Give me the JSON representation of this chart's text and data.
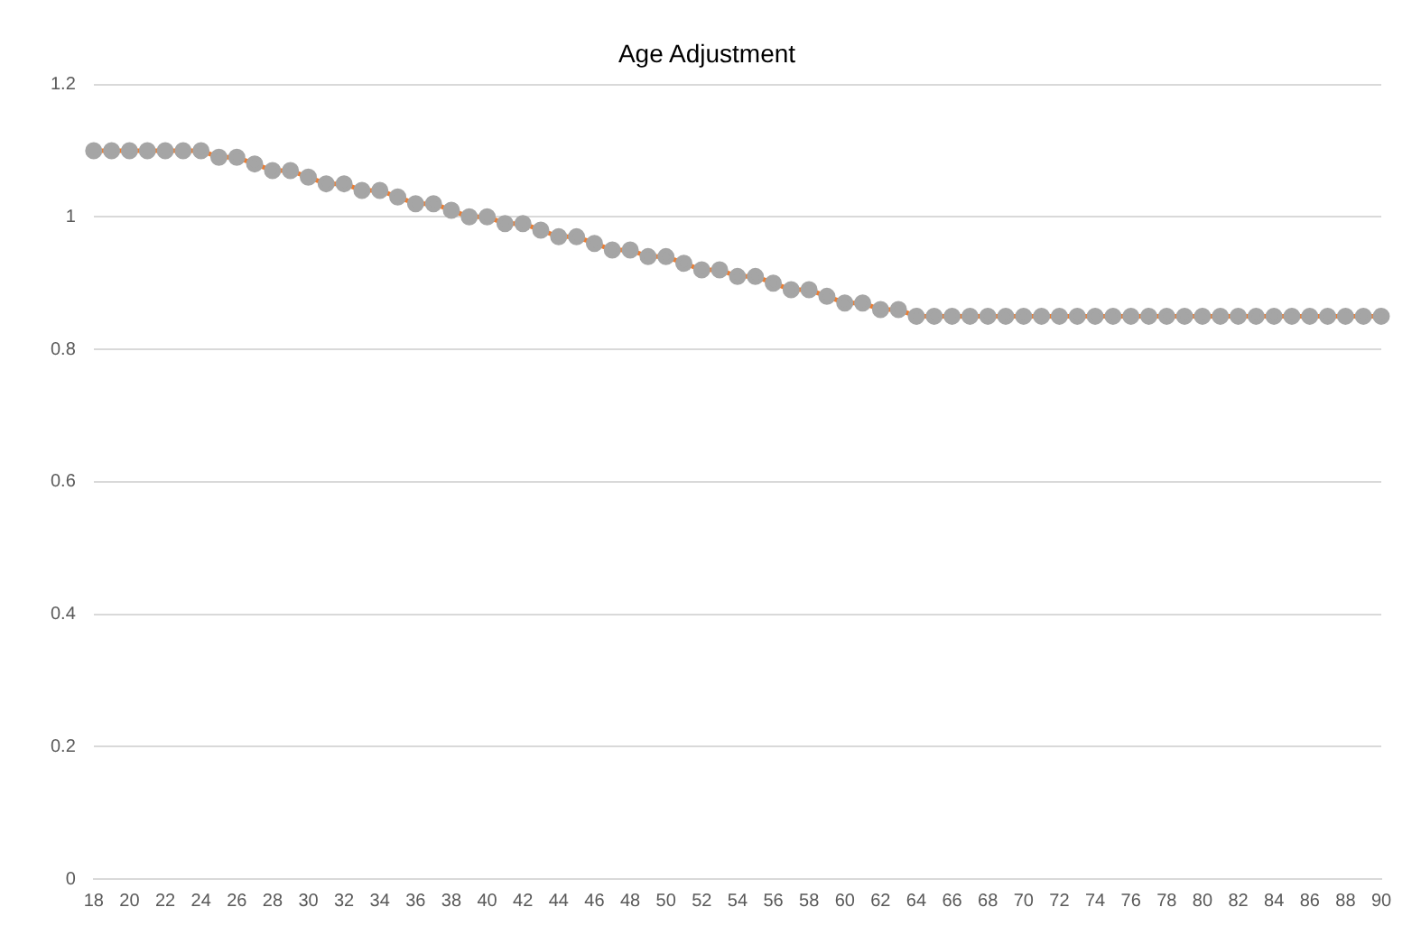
{
  "chart_data": {
    "type": "line",
    "title": "Age Adjustment",
    "categories": [
      "18",
      null,
      "20",
      null,
      "22",
      null,
      "24",
      null,
      "26",
      null,
      "28",
      null,
      "30",
      null,
      "32",
      null,
      "34",
      null,
      "36",
      null,
      "38",
      null,
      "40",
      null,
      "42",
      null,
      "44",
      null,
      "46",
      null,
      "48",
      null,
      "50",
      null,
      "52",
      null,
      "54",
      null,
      "56",
      null,
      "58",
      null,
      "60",
      null,
      "62",
      null,
      "64",
      null,
      "66",
      null,
      "68",
      null,
      "70",
      null,
      "72",
      null,
      "74",
      null,
      "76",
      null,
      "78",
      null,
      "80",
      null,
      "82",
      null,
      "84",
      null,
      "86",
      null,
      "88",
      null,
      "90"
    ],
    "series": [
      {
        "color": "#ed7d31",
        "values": [
          1.1,
          1.1,
          1.1,
          1.1,
          1.1,
          1.1,
          1.1,
          1.09,
          1.09,
          1.08,
          1.07,
          1.07,
          1.06,
          1.05,
          1.05,
          1.04,
          1.04,
          1.03,
          1.02,
          1.02,
          1.01,
          1.0,
          1.0,
          0.99,
          0.99,
          0.98,
          0.97,
          0.97,
          0.96,
          0.95,
          0.95,
          0.94,
          0.94,
          0.93,
          0.92,
          0.92,
          0.91,
          0.91,
          0.9,
          0.89,
          0.89,
          0.88,
          0.87,
          0.87,
          0.86,
          0.86,
          0.85,
          0.85,
          0.85,
          0.85,
          0.85,
          0.85,
          0.85,
          0.85,
          0.85,
          0.85,
          0.85,
          0.85,
          0.85,
          0.85,
          0.85,
          0.85,
          0.85,
          0.85,
          0.85,
          0.85,
          0.85,
          0.85,
          0.85,
          0.85,
          0.85,
          0.85,
          0.85
        ]
      }
    ],
    "ylim": [
      0,
      1.2
    ],
    "yticks": [
      0,
      0.2,
      0.4,
      0.6,
      0.8,
      1,
      1.2
    ],
    "grid": "y",
    "legend": false,
    "marker": "circle",
    "line_style": "solid"
  }
}
